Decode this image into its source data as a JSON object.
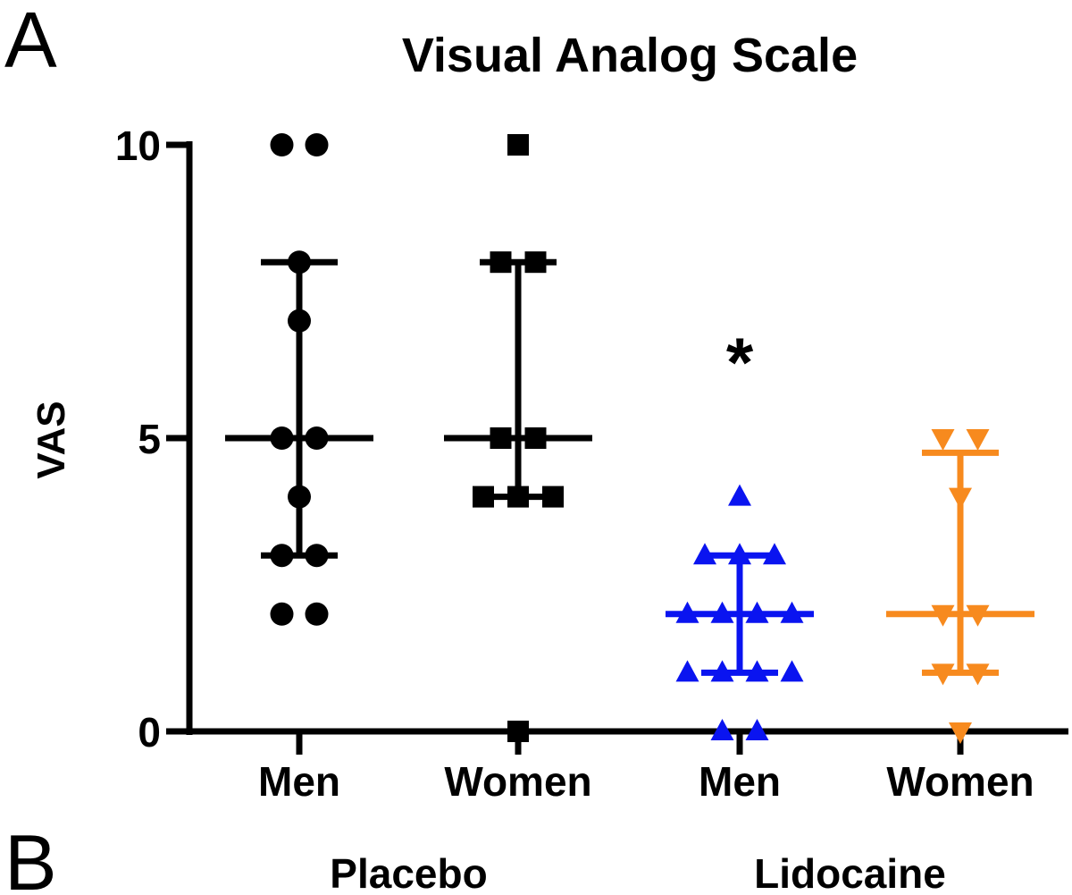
{
  "panel_labels": {
    "top": "A",
    "bottom": "B"
  },
  "chart_data": {
    "type": "scatter",
    "title": "Visual Analog Scale",
    "ylabel": "VAS",
    "xlabel": "",
    "ylim": [
      0,
      10
    ],
    "yticks": [
      0,
      5,
      10
    ],
    "categories": [
      "Men",
      "Women",
      "Men",
      "Women"
    ],
    "groups": [
      {
        "label": "Placebo",
        "categories": [
          0,
          1
        ]
      },
      {
        "label": "Lidocaine",
        "categories": [
          2,
          3
        ]
      }
    ],
    "series": [
      {
        "name": "Placebo Men",
        "marker": "circle",
        "color": "#000000",
        "values": [
          10,
          10,
          8,
          7,
          5,
          5,
          4,
          3,
          3,
          2,
          2
        ],
        "median": 5,
        "q1": 3,
        "q3": 8
      },
      {
        "name": "Placebo Women",
        "marker": "square",
        "color": "#000000",
        "values": [
          10,
          8,
          8,
          5,
          5,
          4,
          4,
          4,
          0
        ],
        "median": 5,
        "q1": 4,
        "q3": 8
      },
      {
        "name": "Lidocaine Men",
        "marker": "triangle-up",
        "color": "#0a14f0",
        "values": [
          4,
          3,
          3,
          3,
          2,
          2,
          2,
          2,
          1,
          1,
          1,
          1,
          0,
          0
        ],
        "median": 2,
        "q1": 1,
        "q3": 3
      },
      {
        "name": "Lidocaine Women",
        "marker": "triangle-down",
        "color": "#f78a1e",
        "values": [
          5,
          5,
          4,
          2,
          2,
          1,
          1,
          0
        ],
        "median": 2,
        "q1": 1,
        "q3": 4.75
      }
    ],
    "annotations": [
      {
        "text": "*",
        "category": 2
      }
    ]
  }
}
